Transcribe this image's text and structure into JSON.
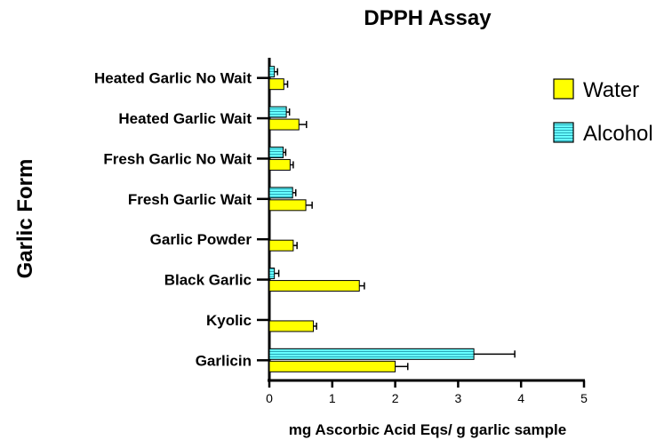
{
  "chart_data": {
    "type": "bar",
    "orientation": "horizontal",
    "title": "DPPH Assay",
    "xlabel": "mg Ascorbic Acid Eqs/ g garlic sample",
    "ylabel": "Garlic Form",
    "xlim": [
      0,
      5
    ],
    "xticks": [
      "0",
      "1",
      "2",
      "3",
      "4",
      "5"
    ],
    "categories": [
      "Garlicin",
      "Kyolic",
      "Black Garlic",
      "Garlic Powder",
      "Fresh Garlic Wait",
      "Fresh Garlic No Wait",
      "Heated Garlic Wait",
      "Heated Garlic No Wait"
    ],
    "series": [
      {
        "name": "Water",
        "color": "#ffff00",
        "values": [
          2.0,
          0.7,
          1.43,
          0.38,
          0.58,
          0.33,
          0.47,
          0.23
        ],
        "errors": [
          0.2,
          0.05,
          0.08,
          0.06,
          0.1,
          0.05,
          0.12,
          0.06
        ]
      },
      {
        "name": "Alcohol",
        "color": "#66ffff",
        "values": [
          3.25,
          null,
          0.08,
          null,
          0.37,
          0.22,
          0.27,
          0.08
        ],
        "errors": [
          0.65,
          null,
          0.07,
          null,
          0.05,
          0.04,
          0.05,
          0.05
        ]
      }
    ],
    "grid": false,
    "legend": "right"
  }
}
